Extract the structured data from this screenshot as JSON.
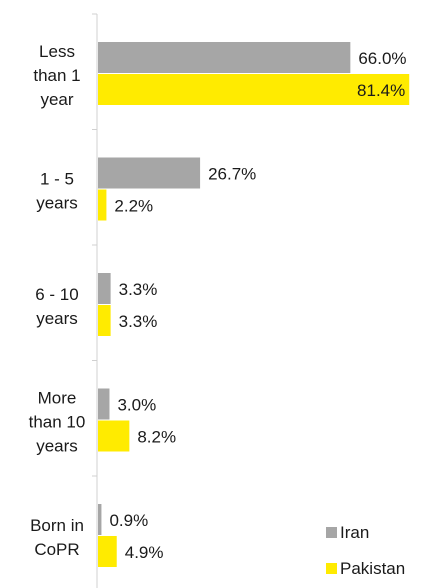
{
  "chart_data": {
    "type": "bar",
    "orientation": "horizontal",
    "categories": [
      "Less than 1 year",
      "1 - 5 years",
      "6 - 10 years",
      "More than 10 years",
      "Born in CoPR"
    ],
    "category_label_lines": [
      [
        "Less",
        "than 1",
        "year"
      ],
      [
        "1 - 5",
        "years"
      ],
      [
        "6 - 10",
        "years"
      ],
      [
        "More",
        "than 10",
        "years"
      ],
      [
        "Born in",
        "CoPR"
      ]
    ],
    "series": [
      {
        "name": "Iran",
        "values": [
          66.0,
          26.7,
          3.3,
          3.0,
          0.9
        ],
        "labels": [
          "66.0%",
          "26.7%",
          "3.3%",
          "3.0%",
          "0.9%"
        ],
        "color": "#a6a6a6"
      },
      {
        "name": "Pakistan",
        "values": [
          81.4,
          2.2,
          3.3,
          8.2,
          4.9
        ],
        "labels": [
          "81.4%",
          "2.2%",
          "3.3%",
          "8.2%",
          "4.9%"
        ],
        "color": "#ffeb00"
      }
    ],
    "xlim": [
      0,
      85
    ],
    "title": "",
    "xlabel": "",
    "ylabel": "",
    "legend": {
      "position": "bottom-right",
      "items": [
        "Iran",
        "Pakistan"
      ]
    },
    "grid": false
  }
}
